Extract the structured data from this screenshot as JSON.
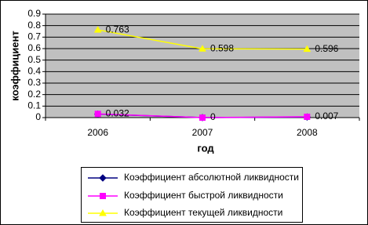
{
  "chart_data": {
    "type": "line",
    "x_label": "год",
    "y_label": "коэффициент",
    "categories": [
      "2006",
      "2007",
      "2008"
    ],
    "ylim": [
      0,
      0.9
    ],
    "yticks": [
      0,
      0.1,
      0.2,
      0.3,
      0.4,
      0.5,
      0.6,
      0.7,
      0.8,
      0.9
    ],
    "grid": true,
    "legend": "bottom",
    "series": [
      {
        "name": "Коэффициент абсолютной ликвидности",
        "color": "#000080",
        "marker": "diamond",
        "show_labels": false,
        "values": [
          0.03,
          0,
          0.005
        ]
      },
      {
        "name": "Коэффициент быстрой ликвидности",
        "color": "#ff00ff",
        "marker": "square",
        "show_labels": true,
        "values": [
          0.032,
          0,
          0.007
        ]
      },
      {
        "name": "Коэффициент текущей ликвидности",
        "color": "#ffff00",
        "marker": "triangle",
        "show_labels": true,
        "values": [
          0.763,
          0.598,
          0.596
        ]
      }
    ]
  }
}
